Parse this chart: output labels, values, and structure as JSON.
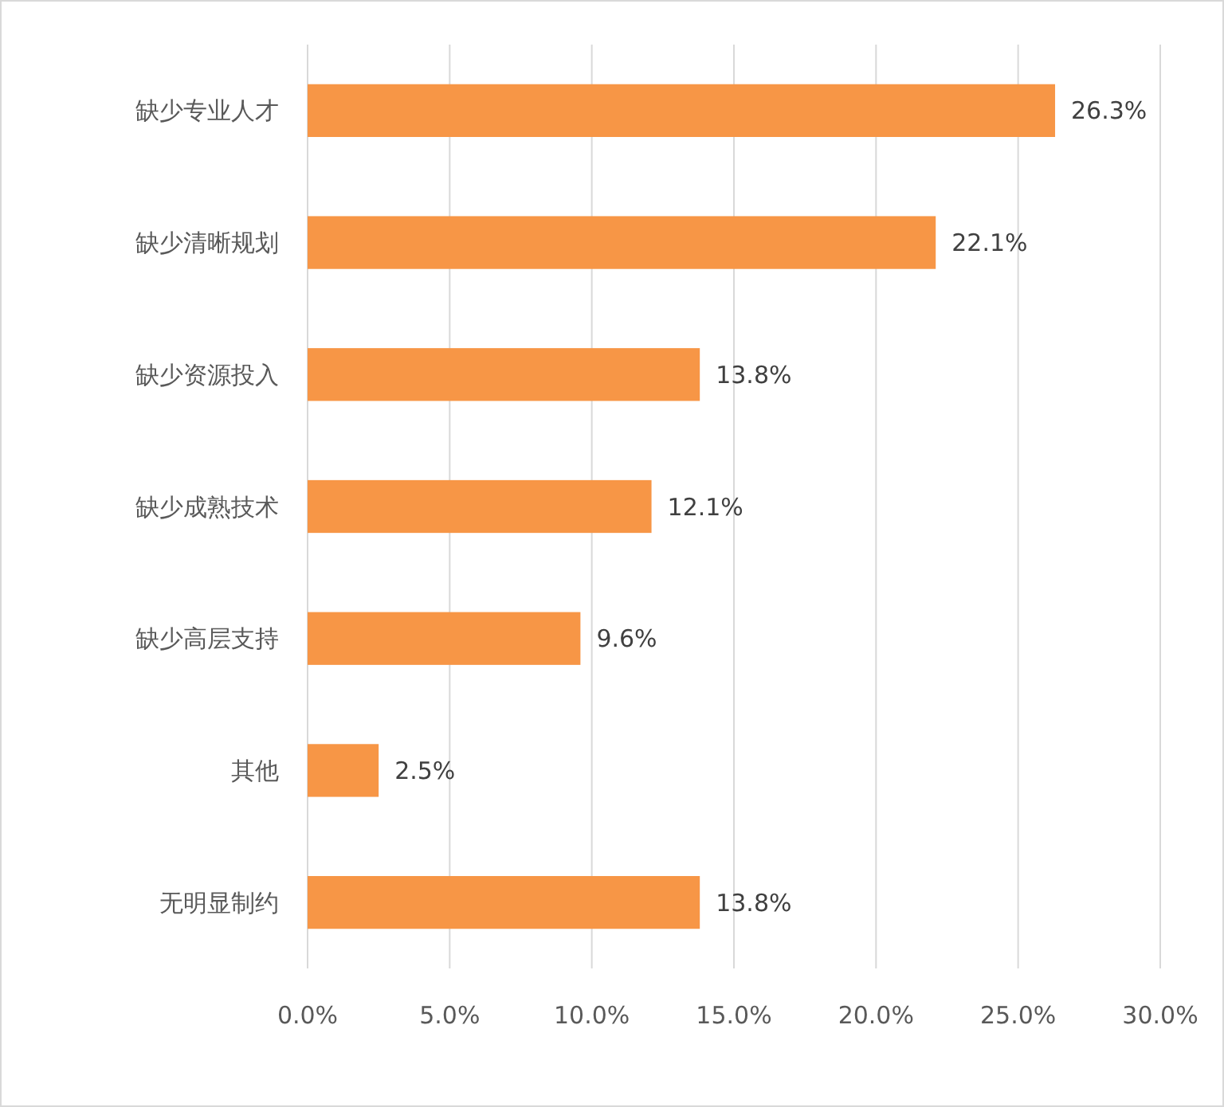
{
  "chart_data": {
    "type": "bar",
    "orientation": "horizontal",
    "categories": [
      "缺少专业人才",
      "缺少清晰规划",
      "缺少资源投入",
      "缺少成熟技术",
      "缺少高层支持",
      "其他",
      "无明显制约"
    ],
    "values": [
      26.3,
      22.1,
      13.8,
      12.1,
      9.6,
      2.5,
      13.8
    ],
    "value_labels": [
      "26.3%",
      "22.1%",
      "13.8%",
      "12.1%",
      "9.6%",
      "2.5%",
      "13.8%"
    ],
    "color": "#f79646",
    "xlim": [
      0,
      30
    ],
    "xticks": [
      {
        "value": 0,
        "label": "0.0%"
      },
      {
        "value": 5,
        "label": "5.0%"
      },
      {
        "value": 10,
        "label": "10.0%"
      },
      {
        "value": 15,
        "label": "15.0%"
      },
      {
        "value": 20,
        "label": "20.0%"
      },
      {
        "value": 25,
        "label": "25.0%"
      },
      {
        "value": 30,
        "label": "30.0%"
      }
    ],
    "grid": "x"
  }
}
